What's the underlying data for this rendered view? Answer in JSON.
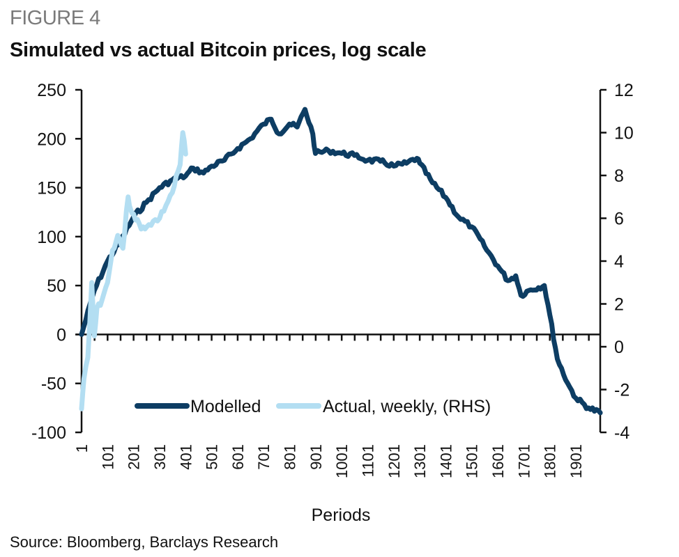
{
  "figure": {
    "label": "FIGURE 4",
    "title": "Simulated vs actual Bitcoin prices, log scale",
    "source": "Source: Bloomberg, Barclays Research"
  },
  "colors": {
    "modelled": "#0d3d63",
    "actual": "#b3def2",
    "axis": "#111111"
  },
  "chart_data": {
    "type": "line",
    "title": "Simulated vs actual Bitcoin prices, log scale",
    "xlabel": "Periods",
    "ylabel": "",
    "y2label": "",
    "xlim": [
      1,
      2000
    ],
    "ylim": [
      -100,
      250
    ],
    "y2lim": [
      -4,
      12
    ],
    "yticks": [
      250,
      200,
      150,
      100,
      50,
      0,
      -50,
      -100
    ],
    "ytick_labels": [
      "250",
      "200",
      "150",
      "100",
      "50",
      "0",
      "-50",
      "-100"
    ],
    "y2ticks": [
      12,
      10,
      8,
      6,
      4,
      2,
      0,
      -2,
      -4
    ],
    "y2tick_labels": [
      "12",
      "10",
      "8",
      "6",
      "4",
      "2",
      "0",
      "-2",
      "-4"
    ],
    "xticks": [
      1,
      101,
      201,
      301,
      401,
      501,
      601,
      701,
      801,
      901,
      1001,
      1101,
      1201,
      1301,
      1401,
      1501,
      1601,
      1701,
      1801,
      1901
    ],
    "xtick_labels": [
      "1",
      "101",
      "201",
      "301",
      "401",
      "501",
      "601",
      "701",
      "801",
      "901",
      "1001",
      "1101",
      "1201",
      "1301",
      "1401",
      "1501",
      "1601",
      "1701",
      "1801",
      "1901"
    ],
    "minor_xtick_step": 50,
    "grid": false,
    "legend": {
      "placement": "bottom-center",
      "entries": [
        "Modelled",
        "Actual, weekly, (RHS)"
      ]
    },
    "series": [
      {
        "name": "Modelled",
        "axis": "left",
        "x": [
          1,
          50,
          101,
          150,
          201,
          250,
          301,
          350,
          401,
          430,
          470,
          501,
          550,
          601,
          650,
          701,
          730,
          760,
          800,
          830,
          860,
          890,
          900,
          950,
          1001,
          1050,
          1101,
          1150,
          1201,
          1250,
          1290,
          1301,
          1350,
          1401,
          1450,
          1501,
          1550,
          1601,
          1640,
          1670,
          1690,
          1720,
          1780,
          1801,
          1830,
          1870,
          1901,
          1950,
          1995
        ],
        "values": [
          0,
          45,
          75,
          95,
          120,
          135,
          150,
          158,
          162,
          170,
          165,
          172,
          178,
          190,
          200,
          215,
          220,
          205,
          215,
          212,
          230,
          205,
          185,
          188,
          185,
          183,
          178,
          177,
          172,
          175,
          180,
          175,
          155,
          140,
          120,
          110,
          90,
          70,
          55,
          60,
          40,
          45,
          50,
          20,
          -25,
          -50,
          -65,
          -75,
          -80
        ]
      },
      {
        "name": "Actual, weekly, (RHS)",
        "axis": "right",
        "x": [
          1,
          10,
          25,
          40,
          50,
          60,
          80,
          101,
          120,
          140,
          160,
          180,
          190,
          201,
          230,
          260,
          301,
          350,
          380,
          390,
          401
        ],
        "values": [
          -2.9,
          -1.5,
          -0.5,
          3.0,
          0.5,
          1.8,
          2.2,
          3.0,
          4.5,
          5.2,
          4.6,
          7.0,
          6.4,
          6.2,
          5.5,
          5.7,
          6.0,
          7.2,
          8.5,
          10.0,
          9.0
        ]
      }
    ]
  }
}
